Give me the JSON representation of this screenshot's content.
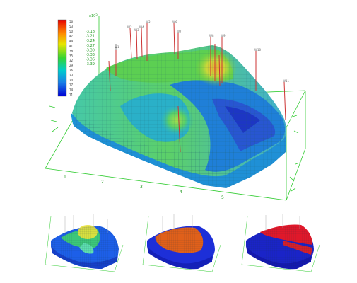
{
  "main_view": {
    "colorbar_ticks": [
      "56",
      "53",
      "50",
      "47",
      "44",
      "41",
      "38",
      "35",
      "32",
      "29",
      "26",
      "23",
      "20",
      "17",
      "14",
      "11"
    ],
    "exponent_label": "x10",
    "exponent_power": "5",
    "z_ticks": [
      "-3.18",
      "-3.21",
      "-3.24",
      "-3.27",
      "-3.30",
      "-3.33",
      "-3.36",
      "-3.39"
    ],
    "x_ticks": [
      "1",
      "2",
      "3",
      "4",
      "5"
    ],
    "colors": {
      "axes": "#33cc33",
      "mesh_line": "#1d5f66",
      "well": "#cc3333"
    }
  },
  "thumbnails": [
    {
      "name": "thumbnail-1",
      "surface_colors": [
        "#1d5fe8",
        "#3cc77a",
        "#e9e23a"
      ]
    },
    {
      "name": "thumbnail-2",
      "surface_colors": [
        "#1d2fd8",
        "#e0601a"
      ]
    },
    {
      "name": "thumbnail-3",
      "surface_colors": [
        "#1a24c8",
        "#e0182a"
      ]
    }
  ]
}
